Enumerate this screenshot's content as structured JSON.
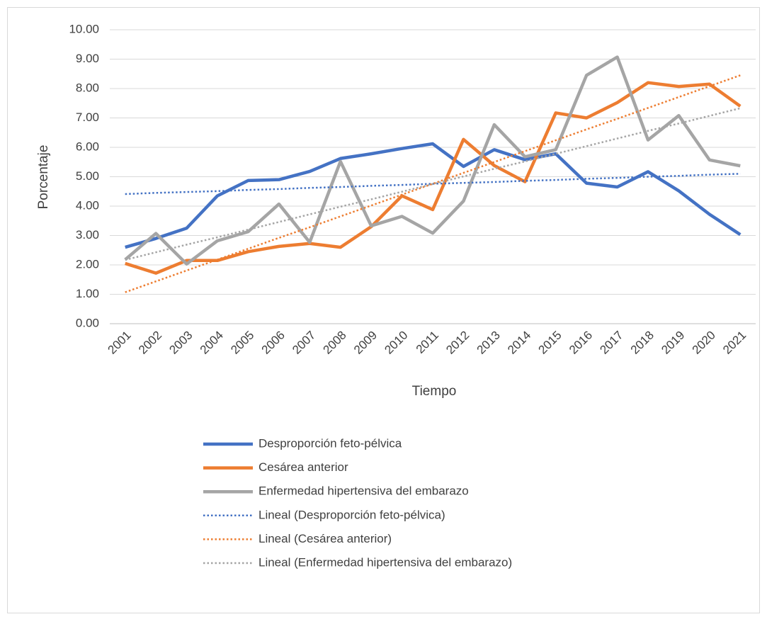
{
  "chart_data": {
    "type": "line",
    "x_label": "Tiempo",
    "y_label": "Porcentaje",
    "categories": [
      "2001",
      "2002",
      "2003",
      "2004",
      "2005",
      "2006",
      "2007",
      "2008",
      "2009",
      "2010",
      "2011",
      "2012",
      "2013",
      "2014",
      "2015",
      "2016",
      "2017",
      "2018",
      "2019",
      "2020",
      "2021"
    ],
    "ylim": [
      0,
      10
    ],
    "yticks": [
      {
        "value": 0,
        "label": "0.00"
      },
      {
        "value": 1,
        "label": "1.00"
      },
      {
        "value": 2,
        "label": "2.00"
      },
      {
        "value": 3,
        "label": "3.00"
      },
      {
        "value": 4,
        "label": "4.00"
      },
      {
        "value": 5,
        "label": "5.00"
      },
      {
        "value": 6,
        "label": "6.00"
      },
      {
        "value": 7,
        "label": "7.00"
      },
      {
        "value": 8,
        "label": "8.00"
      },
      {
        "value": 9,
        "label": "9.00"
      },
      {
        "value": 10,
        "label": "10.00"
      }
    ],
    "grid": true,
    "legend": "bottom",
    "series": [
      {
        "name": "Desproporción feto-pélvica",
        "color": "#4472c4",
        "line_style": "solid",
        "values": [
          2.6,
          2.9,
          3.25,
          4.35,
          4.87,
          4.9,
          5.18,
          5.62,
          5.78,
          5.96,
          6.12,
          5.35,
          5.92,
          5.58,
          5.78,
          4.78,
          4.65,
          5.17,
          4.52,
          3.72,
          3.03
        ]
      },
      {
        "name": "Cesárea anterior",
        "color": "#ed7d31",
        "line_style": "solid",
        "values": [
          2.05,
          1.72,
          2.15,
          2.15,
          2.45,
          2.63,
          2.73,
          2.6,
          3.3,
          4.35,
          3.88,
          6.27,
          5.38,
          4.83,
          7.17,
          7.0,
          7.52,
          8.2,
          8.07,
          8.15,
          7.4
        ]
      },
      {
        "name": "Enfermedad hipertensiva del embarazo",
        "color": "#a5a5a5",
        "line_style": "solid",
        "values": [
          2.18,
          3.07,
          2.03,
          2.82,
          3.13,
          4.07,
          2.77,
          5.52,
          3.33,
          3.65,
          3.08,
          4.17,
          6.77,
          5.68,
          5.92,
          8.45,
          9.07,
          6.25,
          7.08,
          5.57,
          5.37
        ]
      },
      {
        "name": "Lineal (Desproporción feto-pélvica)",
        "color": "#4472c4",
        "line_style": "dotted",
        "values": [
          4.41,
          4.45,
          4.48,
          4.51,
          4.55,
          4.58,
          4.62,
          4.65,
          4.69,
          4.72,
          4.76,
          4.79,
          4.82,
          4.86,
          4.89,
          4.93,
          4.96,
          5.0,
          5.03,
          5.07,
          5.1
        ]
      },
      {
        "name": "Lineal (Cesárea anterior)",
        "color": "#ed7d31",
        "line_style": "dotted",
        "values": [
          1.07,
          1.44,
          1.81,
          2.18,
          2.55,
          2.92,
          3.28,
          3.65,
          4.02,
          4.39,
          4.76,
          5.13,
          5.5,
          5.87,
          6.24,
          6.61,
          6.97,
          7.34,
          7.71,
          8.08,
          8.45
        ]
      },
      {
        "name": "Lineal (Enfermedad hipertensiva del embarazo)",
        "color": "#a5a5a5",
        "line_style": "dotted",
        "values": [
          2.17,
          2.43,
          2.69,
          2.94,
          3.2,
          3.46,
          3.72,
          3.98,
          4.23,
          4.49,
          4.75,
          5.01,
          5.27,
          5.52,
          5.78,
          6.04,
          6.3,
          6.56,
          6.81,
          7.07,
          7.33
        ]
      }
    ]
  }
}
